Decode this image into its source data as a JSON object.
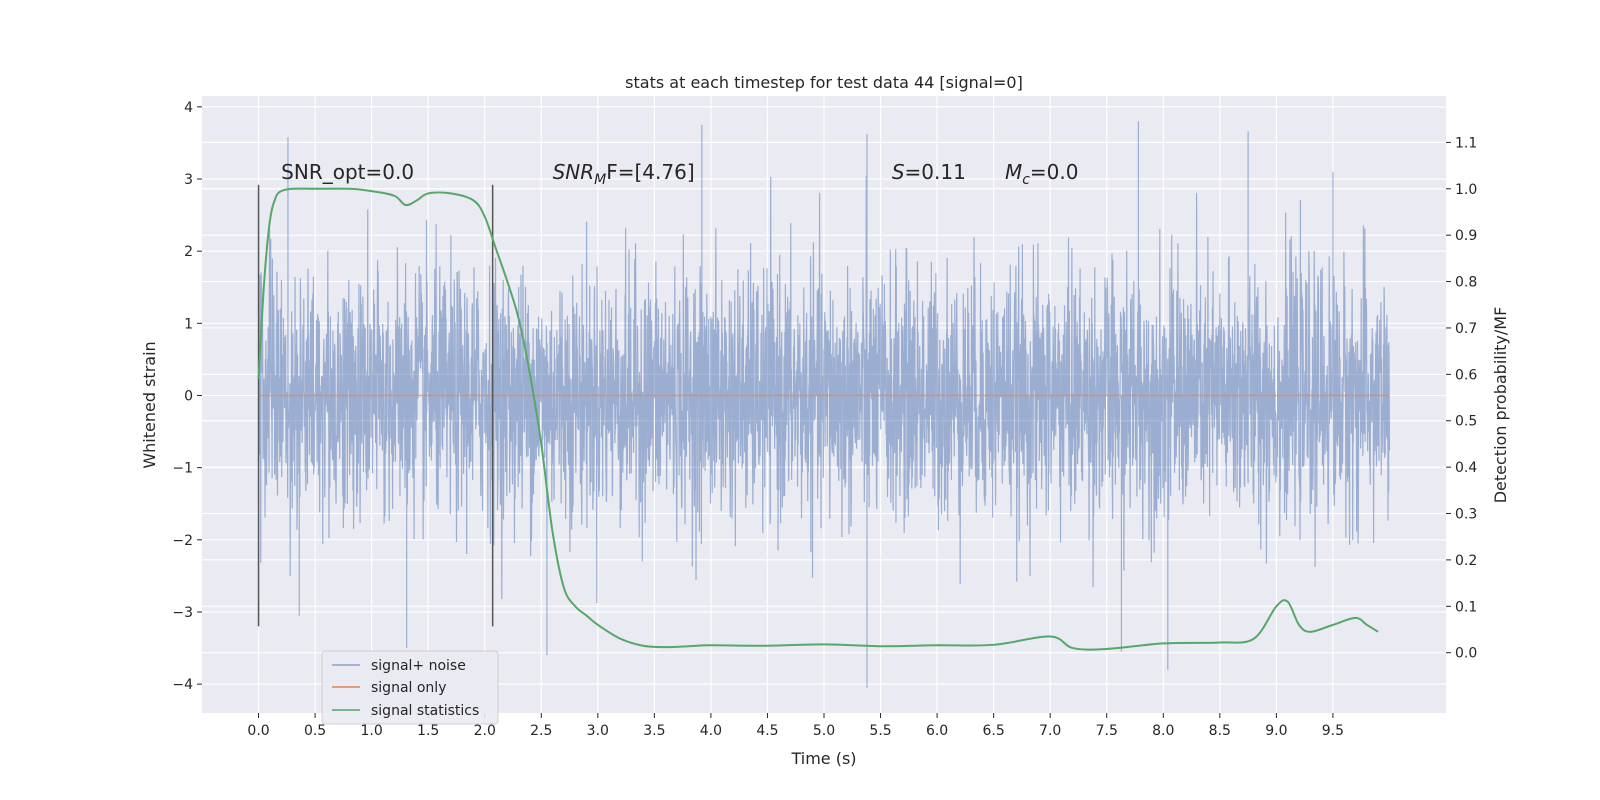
{
  "chart_data": {
    "type": "line",
    "title": "stats at each timestep for test data 44 [signal=0]",
    "xlabel": "Time (s)",
    "ylabel": "Whitened strain",
    "y2label": "Detection probability/MF",
    "xlim": [
      -0.5,
      10.5
    ],
    "ylim": [
      -4.4,
      4.15
    ],
    "y2lim": [
      -0.13,
      1.2
    ],
    "xticks": [
      0.0,
      0.5,
      1.0,
      1.5,
      2.0,
      2.5,
      3.0,
      3.5,
      4.0,
      4.5,
      5.0,
      5.5,
      6.0,
      6.5,
      7.0,
      7.5,
      8.0,
      8.5,
      9.0,
      9.5
    ],
    "xtick_labels": [
      "0.0",
      "0.5",
      "1.0",
      "1.5",
      "2.0",
      "2.5",
      "3.0",
      "3.5",
      "4.0",
      "4.5",
      "5.0",
      "5.5",
      "6.0",
      "6.5",
      "7.0",
      "7.5",
      "8.0",
      "8.5",
      "9.0",
      "9.5"
    ],
    "yticks": [
      -4,
      -3,
      -2,
      -1,
      0,
      1,
      2,
      3,
      4
    ],
    "ytick_labels": [
      "−4",
      "−3",
      "−2",
      "−1",
      "0",
      "1",
      "2",
      "3",
      "4"
    ],
    "y2ticks": [
      0.0,
      0.1,
      0.2,
      0.3,
      0.4,
      0.5,
      0.6,
      0.7,
      0.8,
      0.9,
      1.0,
      1.1
    ],
    "y2tick_labels": [
      "0.0",
      "0.1",
      "0.2",
      "0.3",
      "0.4",
      "0.5",
      "0.6",
      "0.7",
      "0.8",
      "0.9",
      "1.0",
      "1.1"
    ],
    "grid": true,
    "legend_position": "bottom-left",
    "series": [
      {
        "name": "signal+ noise",
        "color": "#4c72b0",
        "axis": "left",
        "noise_sigma": 0.85,
        "x_range": [
          0.0,
          10.0
        ],
        "sample_spikes": [
          {
            "x": 0.26,
            "y": 3.58
          },
          {
            "x": 1.31,
            "y": -3.5
          },
          {
            "x": 3.92,
            "y": 3.75
          },
          {
            "x": 5.38,
            "y": -4.05
          },
          {
            "x": 5.38,
            "y": 3.62
          },
          {
            "x": 7.78,
            "y": 3.8
          },
          {
            "x": 8.75,
            "y": 3.66
          },
          {
            "x": 7.63,
            "y": -3.55
          },
          {
            "x": 8.04,
            "y": -3.8
          },
          {
            "x": 2.55,
            "y": -3.6
          },
          {
            "x": 0.36,
            "y": -3.05
          },
          {
            "x": 9.5,
            "y": 3.1
          }
        ]
      },
      {
        "name": "signal only",
        "color": "#dd8452",
        "axis": "left",
        "x": [
          0.0,
          10.0
        ],
        "y": [
          0.0,
          0.0
        ]
      },
      {
        "name": "signal statistics",
        "color": "#55a868",
        "axis": "right",
        "x": [
          0.0,
          0.05,
          0.1,
          0.15,
          0.2,
          0.3,
          0.5,
          0.8,
          1.0,
          1.2,
          1.3,
          1.4,
          1.5,
          1.7,
          1.9,
          2.0,
          2.1,
          2.2,
          2.3,
          2.4,
          2.5,
          2.6,
          2.7,
          2.8,
          2.9,
          3.0,
          3.2,
          3.4,
          3.6,
          3.8,
          4.0,
          4.5,
          5.0,
          5.5,
          6.0,
          6.5,
          7.0,
          7.2,
          7.5,
          8.0,
          8.5,
          8.8,
          9.0,
          9.1,
          9.2,
          9.3,
          9.5,
          9.7,
          9.8,
          9.9
        ],
        "y": [
          0.59,
          0.8,
          0.93,
          0.98,
          0.995,
          1.0,
          1.0,
          1.0,
          0.995,
          0.985,
          0.965,
          0.975,
          0.99,
          0.99,
          0.975,
          0.94,
          0.87,
          0.8,
          0.72,
          0.6,
          0.45,
          0.26,
          0.14,
          0.1,
          0.08,
          0.06,
          0.03,
          0.015,
          0.012,
          0.014,
          0.016,
          0.015,
          0.018,
          0.014,
          0.016,
          0.017,
          0.035,
          0.01,
          0.008,
          0.02,
          0.022,
          0.03,
          0.1,
          0.11,
          0.06,
          0.045,
          0.06,
          0.075,
          0.06,
          0.045
        ]
      }
    ],
    "vlines": [
      {
        "x": 0.0,
        "y_from": -3.2,
        "y_to": 2.92
      },
      {
        "x": 2.07,
        "y_from": -3.2,
        "y_to": 2.92
      }
    ],
    "annotations": [
      {
        "text": "SNR_opt=0.0",
        "x": 0.2,
        "y": 3.0
      },
      {
        "text_main": "SNR",
        "text_sub": "M",
        "text_rest": "F=[4.76]",
        "x": 2.6,
        "y": 3.0
      },
      {
        "text_main": "S",
        "text_sub": "",
        "text_rest": "=0.11",
        "x": 5.6,
        "y": 3.0
      },
      {
        "text_main": "M",
        "text_sub": "c",
        "text_rest": "=0.0",
        "x": 6.6,
        "y": 3.0
      }
    ]
  }
}
